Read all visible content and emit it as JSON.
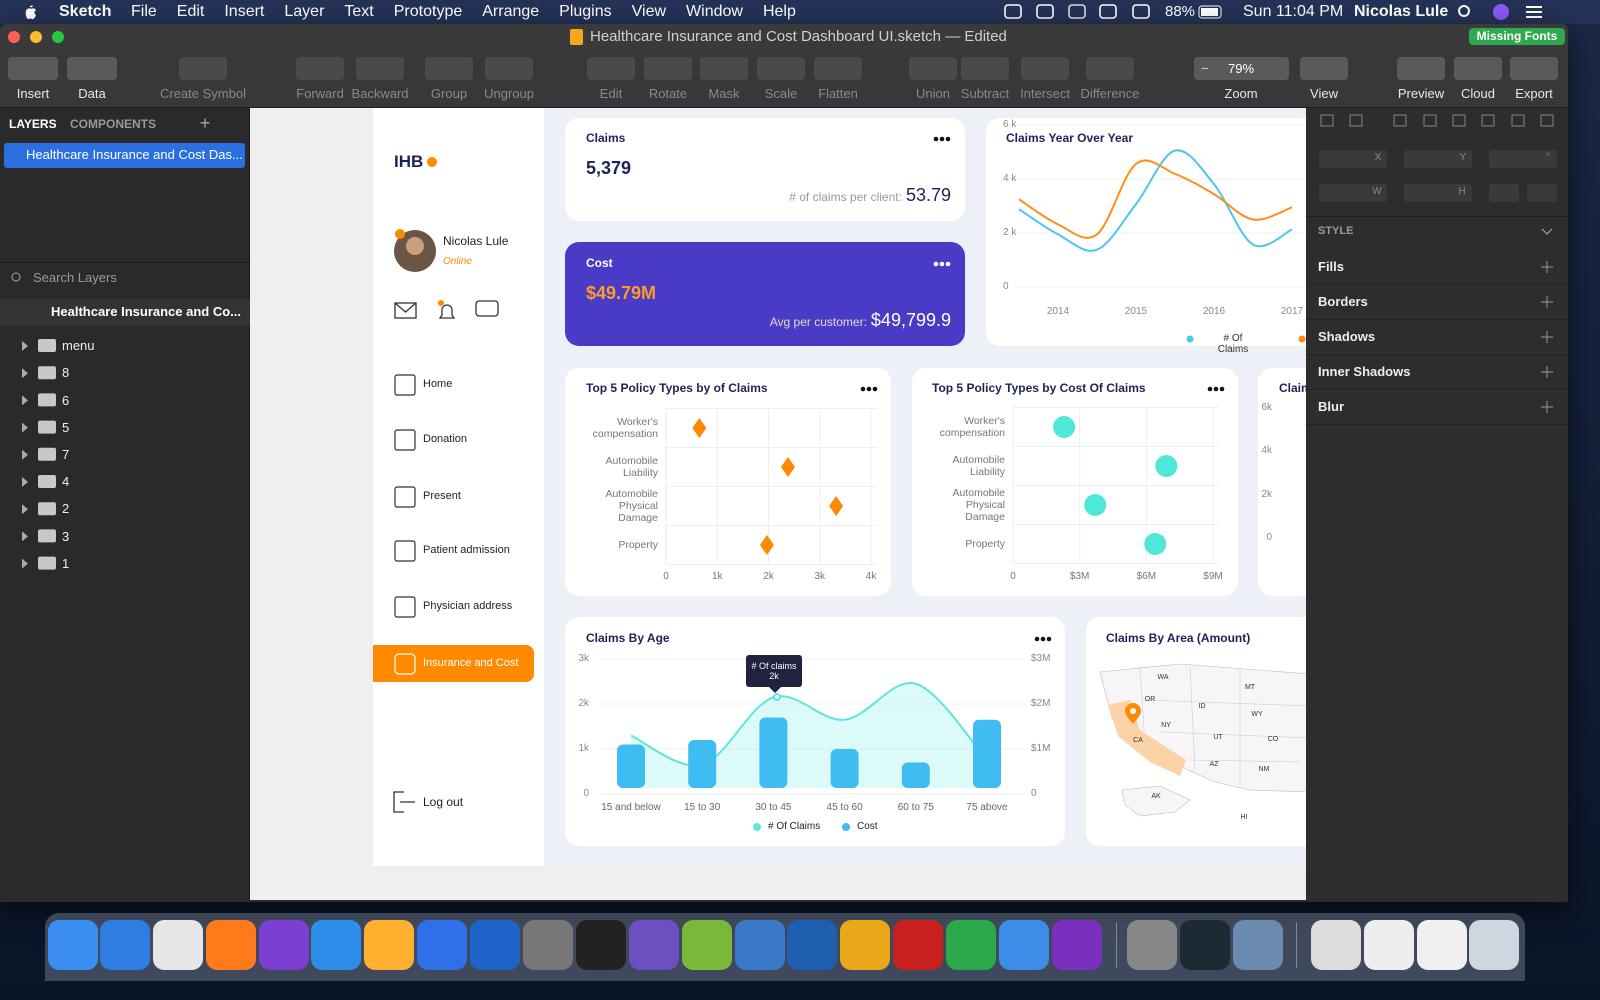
{
  "menubar": {
    "app": "Sketch",
    "menus": [
      "File",
      "Edit",
      "Insert",
      "Layer",
      "Text",
      "Prototype",
      "Arrange",
      "Plugins",
      "View",
      "Window",
      "Help"
    ],
    "battery": "88%",
    "clock": "Sun 11:04 PM",
    "user": "Nicolas Lule"
  },
  "window": {
    "title": "Healthcare Insurance and Cost Dashboard UI.sketch — Edited",
    "badge": "Missing Fonts"
  },
  "toolbar": {
    "items": [
      "Insert",
      "Data",
      "Create Symbol",
      "Forward",
      "Backward",
      "Group",
      "Ungroup",
      "Edit",
      "Rotate",
      "Mask",
      "Scale",
      "Flatten",
      "Union",
      "Subtract",
      "Intersect",
      "Difference",
      "Zoom",
      "View",
      "Preview",
      "Cloud",
      "Export"
    ],
    "zoom": "79%"
  },
  "layers_panel": {
    "tabs": [
      "LAYERS",
      "COMPONENTS"
    ],
    "page": "Healthcare Insurance and Cost Das...",
    "search": "Search Layers",
    "artboard": "Healthcare Insurance and Co...",
    "layers": [
      "menu",
      "8",
      "6",
      "5",
      "7",
      "4",
      "2",
      "3",
      "1"
    ]
  },
  "inspector": {
    "fields": [
      "X",
      "Y",
      "°",
      "W",
      "H"
    ],
    "style": "STYLE",
    "sections": [
      "Fills",
      "Borders",
      "Shadows",
      "Inner Shadows",
      "Blur"
    ]
  },
  "dashboard": {
    "logo": "IHB",
    "user": {
      "name": "Nicolas Lule",
      "status": "Online"
    },
    "nav": [
      "Home",
      "Donation",
      "Present",
      "Patient admission",
      "Physician address",
      "Insurance and Cost"
    ],
    "logout": "Log out",
    "claims": {
      "title": "Claims",
      "value": "5,379",
      "note": "# of claims per client:",
      "note_value": "53.79"
    },
    "cost": {
      "title": "Cost",
      "value": "$49.79M",
      "note": "Avg per customer:",
      "note_value": "$49,799.9"
    },
    "charts": [
      {
        "type": "line",
        "title": "Claims Year Over Year",
        "categories": [
          null,
          "2014",
          null,
          "2015",
          null,
          "2016",
          null,
          "2017"
        ],
        "series": [
          {
            "name": "# Of Claims",
            "color": "#4cc6ec",
            "values": [
              2880,
              1950,
              1380,
              3070,
              5050,
              3810,
              1570,
              2130
            ]
          },
          {
            "color": "#ff8c1a",
            "values": [
              3250,
              2320,
              1950,
              4560,
              4190,
              3440,
              2500,
              2950
            ]
          }
        ],
        "ylim": [
          0,
          6000
        ],
        "yticks": [
          0,
          {
            "value": 2000,
            "label": "2 k"
          },
          {
            "value": 4000,
            "label": "4 k"
          },
          {
            "value": 6000,
            "label": "6 k"
          }
        ]
      },
      {
        "type": "dot",
        "title": "Top 5 Policy  Types by of Claims",
        "categories": [
          "Worker's compensation",
          "Automobile Liability",
          "Automobile Physical Damage",
          "Property"
        ],
        "values": [
          650,
          2380,
          3320,
          1970
        ],
        "color": "#ff8a00",
        "marker": "diamond",
        "xlim": [
          0,
          4000
        ],
        "xticks": [
          0,
          {
            "value": 1000,
            "label": "1k"
          },
          {
            "value": 2000,
            "label": "2k"
          },
          {
            "value": 3000,
            "label": "3k"
          },
          {
            "value": 4000,
            "label": "4k"
          }
        ]
      },
      {
        "type": "dot",
        "title": "Top 5 Policy Types by Cost Of Claims",
        "categories": [
          "Worker's compensation",
          "Automobile Liability",
          "Automobile Physical Damage",
          "Property"
        ],
        "values": [
          2300000,
          6900000,
          3700000,
          6400000
        ],
        "color": "#4de8d8",
        "marker": "circle",
        "xlim": [
          0,
          9000000
        ],
        "xticks": [
          0,
          {
            "value": 3000000,
            "label": "$3M"
          },
          {
            "value": 6000000,
            "label": "$6M"
          },
          {
            "value": 9000000,
            "label": "$9M"
          }
        ]
      },
      {
        "type": "bar",
        "title": "Claim",
        "ylim": [
          0,
          6000
        ],
        "yticks": [
          0,
          {
            "value": 2000,
            "label": "2k"
          },
          {
            "value": 4000,
            "label": "4k"
          },
          {
            "value": 6000,
            "label": "6k"
          }
        ]
      },
      {
        "type": "bar_line",
        "title": "Claims By Age",
        "categories": [
          "15 and below",
          "15 to 30",
          "30 to 45",
          "45 to 60",
          "60 to 75",
          "75 above"
        ],
        "series": [
          {
            "name": "# Of Claims",
            "color": "#5ee6dc",
            "values": [
              1300,
              650,
              2150,
              1650,
              2450,
              750
            ]
          },
          {
            "name": "Cost",
            "color": "#3fbcf2",
            "axis": "y2",
            "values": [
              1100000,
              1200000,
              1700000,
              1000000,
              700000,
              1650000
            ]
          }
        ],
        "ylim": [
          0,
          3000
        ],
        "yticks": [
          0,
          {
            "value": 1000,
            "label": "1k"
          },
          {
            "value": 2000,
            "label": "2k"
          },
          {
            "value": 3000,
            "label": "3k"
          }
        ],
        "y2lim": [
          0,
          3000000
        ],
        "y2ticks": [
          0,
          {
            "value": 1000000,
            "label": "$1M"
          },
          {
            "value": 2000000,
            "label": "$2M"
          },
          {
            "value": 3000000,
            "label": "$3M"
          }
        ],
        "tooltip": [
          "# Of claims",
          "2k"
        ]
      }
    ],
    "area_map": {
      "title": "Claims By Area (Amount)",
      "labels": [
        "WA",
        "OR",
        "ID",
        "MT",
        "WY",
        "NY",
        "UT",
        "CO",
        "CA",
        "AZ",
        "NM",
        "AK",
        "HI"
      ]
    }
  }
}
